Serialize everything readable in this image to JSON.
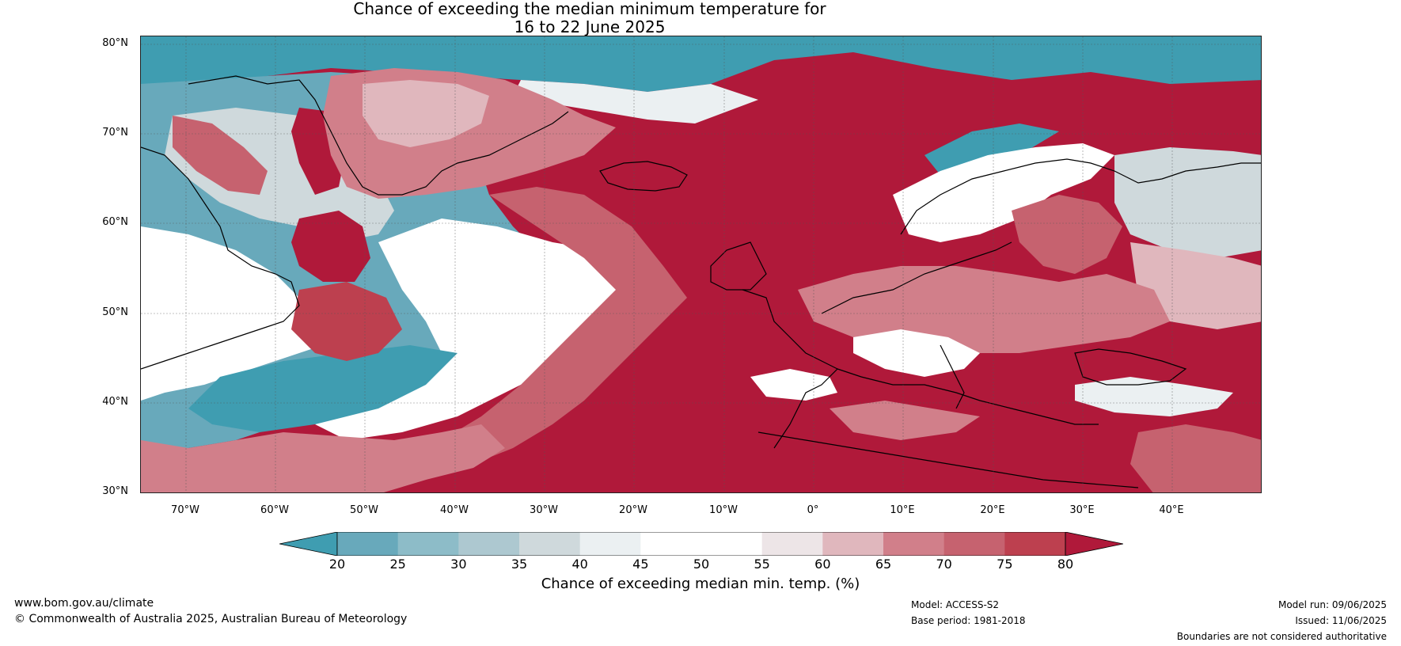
{
  "title": {
    "line1": "Chance of exceeding the median minimum temperature for",
    "line2": "16 to 22 June 2025"
  },
  "map": {
    "latitude_labels": [
      "80°N",
      "70°N",
      "60°N",
      "50°N",
      "40°N",
      "30°N"
    ],
    "longitude_labels": [
      "70°W",
      "60°W",
      "50°W",
      "40°W",
      "30°W",
      "20°W",
      "10°W",
      "0°",
      "10°E",
      "20°E",
      "30°E",
      "40°E"
    ],
    "ocean_base_color": "#b0193a"
  },
  "colorbar": {
    "label": "Chance of exceeding median min. temp. (%)",
    "ticks": [
      "20",
      "25",
      "30",
      "35",
      "40",
      "45",
      "50",
      "55",
      "60",
      "65",
      "70",
      "75",
      "80"
    ],
    "colors": [
      "#3f9db1",
      "#68a9bb",
      "#8dbcc8",
      "#adc8d0",
      "#cfd9dc",
      "#ebf0f2",
      "#ffffff",
      "#ffffff",
      "#ede5e7",
      "#e0b7bd",
      "#d17f8a",
      "#c6626f",
      "#bd404f",
      "#b0193a"
    ]
  },
  "footer": {
    "website": "www.bom.gov.au/climate",
    "copyright": "© Commonwealth of Australia 2025, Australian Bureau of Meteorology",
    "model": "Model: ACCESS-S2",
    "base_period": "Base period: 1981-2018",
    "model_run": "Model run: 09/06/2025",
    "issued": "Issued: 11/06/2025",
    "disclaimer": "Boundaries are not considered authoritative"
  }
}
